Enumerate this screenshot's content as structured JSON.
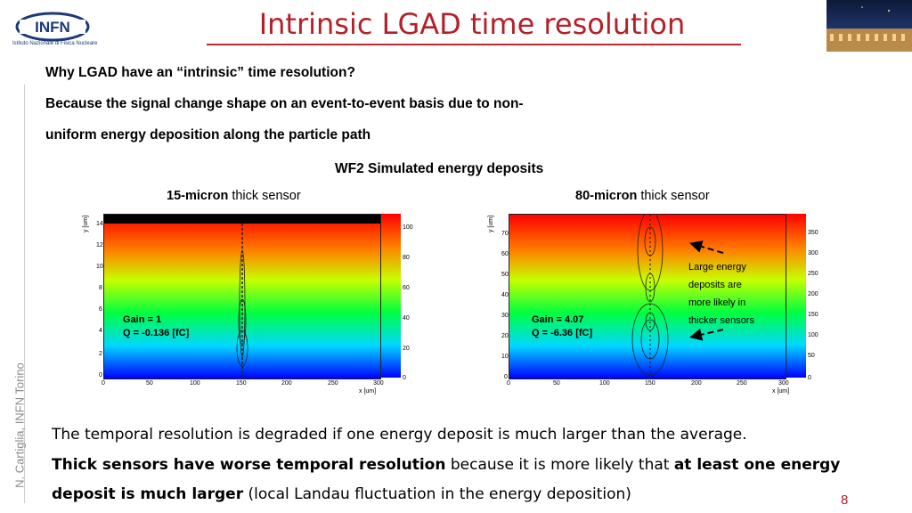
{
  "header": {
    "logo_text": "INFN",
    "logo_subtitle": "Istituto Nazionale di Fisica Nucleare",
    "title": "Intrinsic LGAD time resolution"
  },
  "intro": {
    "question": "Why LGAD have an “intrinsic” time resolution?",
    "answer_line1": "Because the signal change shape on an event-to-event basis  due to non-",
    "answer_line2": "uniform energy deposition along the particle path"
  },
  "figure": {
    "title": "WF2 Simulated energy deposits",
    "left": {
      "caption_bold": "15-micron",
      "caption_rest": " thick sensor",
      "ylabel": "y [um]",
      "xlabel": "x [um]",
      "yticks": [
        "14",
        "12",
        "10",
        "8",
        "6",
        "4",
        "2",
        "0"
      ],
      "xticks": [
        "0",
        "50",
        "100",
        "150",
        "200",
        "250",
        "300"
      ],
      "cbar_ticks": [
        "100",
        "80",
        "60",
        "40",
        "20",
        "0"
      ],
      "gain": "Gain = 1",
      "charge": "Q = -0.136 [fC]"
    },
    "right": {
      "caption_bold": "80-micron",
      "caption_rest": " thick sensor",
      "ylabel": "y [um]",
      "xlabel": "x [um]",
      "yticks": [
        "70",
        "60",
        "50",
        "40",
        "30",
        "20",
        "10",
        "0"
      ],
      "xticks": [
        "0",
        "50",
        "100",
        "150",
        "200",
        "250",
        "300"
      ],
      "cbar_ticks": [
        "350",
        "300",
        "250",
        "200",
        "150",
        "100",
        "50",
        "0"
      ],
      "gain": "Gain = 4.07",
      "charge": "Q = -6.36 [fC]"
    },
    "annotation": [
      "Large energy",
      "deposits are",
      "more likely in",
      "thicker sensors"
    ]
  },
  "body": {
    "line1": "The temporal resolution is degraded if one energy deposit is much larger than the average.",
    "line2_bold": "Thick sensors have worse temporal resolution",
    "line2_rest": " because it is more likely that ",
    "line2_bold2": "at least one energy",
    "line3_bold": "deposit is much larger",
    "line3_rest": " (local Landau fluctuation in the energy deposition)"
  },
  "footer": {
    "author": "N. Cartiglia, INFN Torino",
    "page_number": "8"
  }
}
